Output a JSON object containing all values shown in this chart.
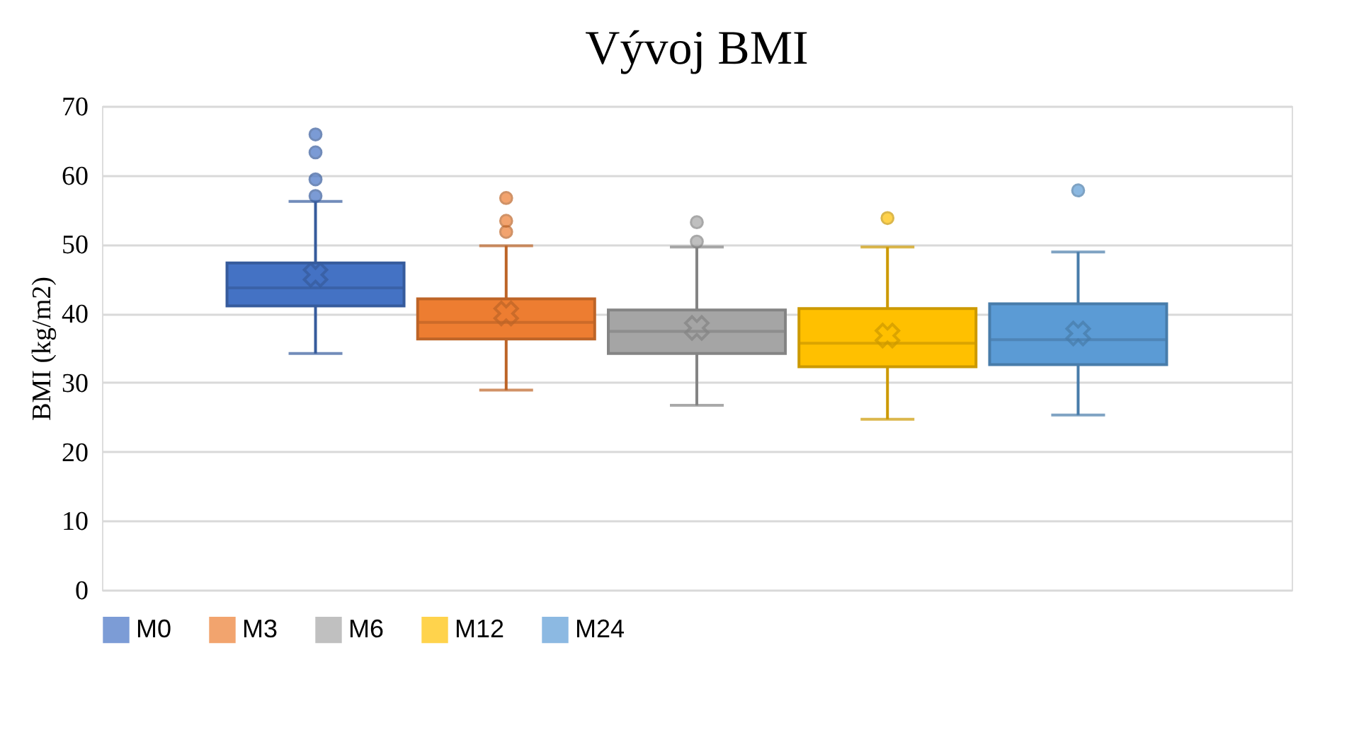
{
  "chart_data": {
    "type": "box",
    "title": "Vývoj BMI",
    "ylabel": "BMI (kg/m2)",
    "categories": [
      null
    ],
    "series": [
      {
        "name": "M0",
        "color": "#4472c4",
        "boxes": [
          {
            "low": 34.2,
            "q1": 41.1,
            "median": 43.7,
            "q3": 47.3,
            "high": 56.2,
            "mean": 45.6,
            "outliers": [
              57.0,
              59.4,
              63.3,
              65.9
            ]
          }
        ]
      },
      {
        "name": "M3",
        "color": "#ed7d31",
        "boxes": [
          {
            "low": 28.9,
            "q1": 36.3,
            "median": 38.7,
            "q3": 42.1,
            "high": 49.8,
            "mean": 40.0,
            "outliers": [
              51.8,
              53.4,
              56.7
            ]
          }
        ]
      },
      {
        "name": "M6",
        "color": "#a5a5a5",
        "boxes": [
          {
            "low": 26.7,
            "q1": 34.2,
            "median": 37.4,
            "q3": 40.5,
            "high": 49.6,
            "mean": 37.9,
            "outliers": [
              50.4,
              53.2
            ]
          }
        ]
      },
      {
        "name": "M12",
        "color": "#ffc000",
        "boxes": [
          {
            "low": 24.7,
            "q1": 32.3,
            "median": 35.7,
            "q3": 40.7,
            "high": 49.6,
            "mean": 36.8,
            "outliers": [
              53.8
            ]
          }
        ]
      },
      {
        "name": "M24",
        "color": "#5b9bd5",
        "boxes": [
          {
            "low": 25.3,
            "q1": 32.6,
            "median": 36.2,
            "q3": 41.4,
            "high": 48.9,
            "mean": 37.1,
            "outliers": [
              57.8
            ]
          }
        ]
      }
    ],
    "ylim": [
      0,
      70
    ],
    "yticks": [
      0,
      10,
      20,
      30,
      40,
      50,
      60,
      70
    ],
    "grid": "y",
    "legend": "bottom",
    "marker": "circle"
  }
}
